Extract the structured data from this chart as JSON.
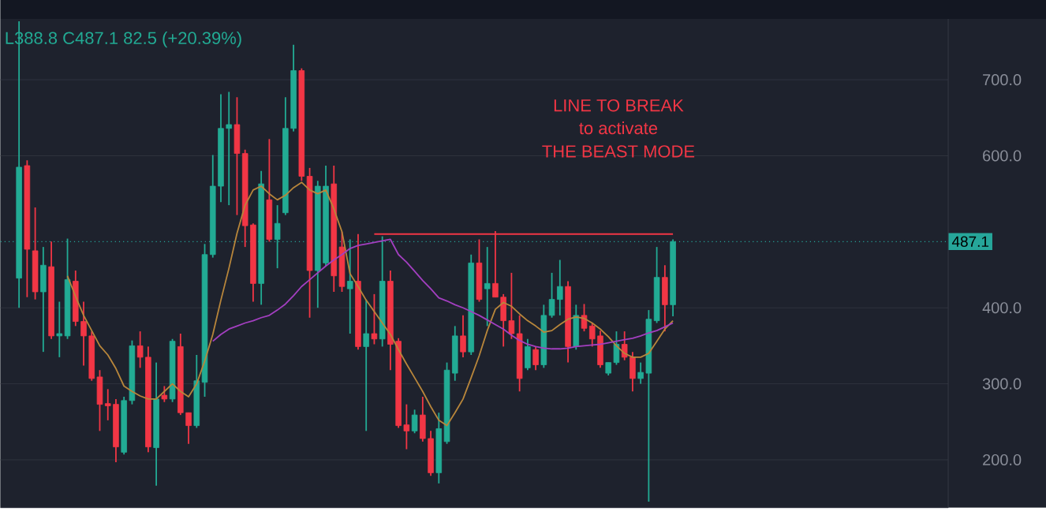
{
  "chart_data": {
    "type": "candlestick",
    "categories": [
      null,
      null,
      null,
      null,
      null,
      null,
      null,
      null,
      null,
      null,
      null,
      null,
      null,
      null,
      null,
      null,
      null,
      null,
      null,
      null,
      null,
      null,
      null,
      null,
      null,
      null,
      null,
      null,
      null,
      null,
      null,
      null,
      null,
      null,
      null,
      null,
      null,
      null,
      null,
      null,
      null,
      null,
      null,
      null,
      null,
      null,
      null,
      null,
      null,
      null,
      null,
      null,
      null,
      null,
      null,
      null,
      null,
      null,
      null,
      null,
      null,
      null,
      null,
      null,
      null,
      null,
      null,
      null,
      null,
      null,
      null,
      null,
      null,
      null,
      null,
      null,
      null,
      null,
      null,
      null,
      null,
      null
    ],
    "ohlc": [
      [
        439,
        777,
        400,
        585
      ],
      [
        587,
        594,
        414,
        477
      ],
      [
        475,
        532,
        411,
        421
      ],
      [
        421,
        480,
        342,
        456
      ],
      [
        454,
        487,
        359,
        363
      ],
      [
        363,
        408,
        335,
        366
      ],
      [
        363,
        491,
        359,
        437
      ],
      [
        435,
        449,
        376,
        382
      ],
      [
        382,
        408,
        324,
        363
      ],
      [
        363,
        369,
        304,
        307
      ],
      [
        309,
        318,
        238,
        273
      ],
      [
        274,
        293,
        252,
        271
      ],
      [
        273,
        280,
        197,
        217
      ],
      [
        210,
        283,
        207,
        278
      ],
      [
        278,
        357,
        273,
        350
      ],
      [
        350,
        369,
        321,
        335
      ],
      [
        335,
        349,
        210,
        217
      ],
      [
        216,
        328,
        166,
        280
      ],
      [
        285,
        297,
        276,
        280
      ],
      [
        280,
        359,
        276,
        356
      ],
      [
        349,
        366,
        259,
        262
      ],
      [
        262,
        262,
        221,
        245
      ],
      [
        245,
        338,
        242,
        304
      ],
      [
        302,
        484,
        283,
        470
      ],
      [
        470,
        601,
        466,
        560
      ],
      [
        560,
        681,
        539,
        636
      ],
      [
        636,
        684,
        535,
        641
      ],
      [
        641,
        677,
        522,
        603
      ],
      [
        603,
        608,
        480,
        508
      ],
      [
        509,
        511,
        408,
        432
      ],
      [
        432,
        580,
        404,
        563
      ],
      [
        542,
        622,
        487,
        490
      ],
      [
        490,
        535,
        452,
        511
      ],
      [
        525,
        677,
        522,
        636
      ],
      [
        636,
        746,
        632,
        712
      ],
      [
        712,
        715,
        567,
        573
      ],
      [
        573,
        584,
        387,
        449
      ],
      [
        449,
        567,
        400,
        560
      ],
      [
        459,
        587,
        455,
        560
      ],
      [
        563,
        587,
        421,
        442
      ],
      [
        480,
        500,
        421,
        428
      ],
      [
        425,
        490,
        366,
        435
      ],
      [
        435,
        497,
        345,
        349
      ],
      [
        349,
        411,
        238,
        366
      ],
      [
        366,
        418,
        352,
        359
      ],
      [
        359,
        494,
        349,
        435
      ],
      [
        435,
        449,
        318,
        352
      ],
      [
        356,
        360,
        242,
        245
      ],
      [
        246,
        273,
        214,
        238
      ],
      [
        238,
        266,
        235,
        259
      ],
      [
        259,
        283,
        224,
        228
      ],
      [
        228,
        238,
        179,
        183
      ],
      [
        183,
        262,
        169,
        241
      ],
      [
        224,
        328,
        221,
        318
      ],
      [
        314,
        376,
        304,
        363
      ],
      [
        363,
        390,
        335,
        342
      ],
      [
        342,
        470,
        338,
        459
      ],
      [
        459,
        490,
        408,
        411
      ],
      [
        425,
        480,
        376,
        432
      ],
      [
        432,
        501,
        414,
        414
      ],
      [
        414,
        418,
        349,
        383
      ],
      [
        383,
        446,
        359,
        366
      ],
      [
        366,
        390,
        290,
        307
      ],
      [
        321,
        359,
        318,
        349
      ],
      [
        345,
        349,
        318,
        325
      ],
      [
        325,
        404,
        321,
        390
      ],
      [
        390,
        446,
        387,
        411
      ],
      [
        411,
        463,
        390,
        428
      ],
      [
        428,
        435,
        328,
        349
      ],
      [
        349,
        404,
        345,
        390
      ],
      [
        390,
        405,
        369,
        373
      ],
      [
        376,
        380,
        349,
        359
      ],
      [
        363,
        370,
        321,
        325
      ],
      [
        314,
        328,
        311,
        328
      ],
      [
        328,
        369,
        325,
        352
      ],
      [
        352,
        369,
        331,
        335
      ],
      [
        335,
        342,
        290,
        307
      ],
      [
        307,
        328,
        300,
        315
      ],
      [
        314,
        397,
        145,
        385
      ],
      [
        383,
        480,
        380,
        440
      ],
      [
        440,
        456,
        369,
        404
      ],
      [
        404,
        490,
        388.8,
        487.1
      ]
    ],
    "series": [
      {
        "type": "line",
        "color": "#b8863b",
        "values": [
          null,
          null,
          null,
          null,
          null,
          null,
          442,
          415,
          390,
          370,
          350,
          338,
          320,
          297,
          290,
          284,
          280,
          280,
          290,
          300,
          290,
          283,
          300,
          330,
          365,
          410,
          452,
          498,
          535,
          555,
          560,
          550,
          542,
          548,
          558,
          565,
          555,
          550,
          555,
          530,
          500,
          445,
          428,
          410,
          395,
          380,
          365,
          345,
          326,
          308,
          290,
          270,
          252,
          245,
          262,
          280,
          308,
          337,
          370,
          398,
          407,
          402,
          392,
          383,
          376,
          368,
          370,
          378,
          385,
          388,
          386,
          380,
          372,
          362,
          350,
          340,
          335,
          335,
          340,
          356,
          372,
          383
        ]
      },
      {
        "type": "line",
        "color": "#a33fc0",
        "values": [
          null,
          null,
          null,
          null,
          null,
          null,
          null,
          null,
          null,
          null,
          null,
          null,
          null,
          null,
          null,
          null,
          null,
          null,
          null,
          null,
          null,
          null,
          null,
          null,
          356,
          365,
          372,
          376,
          380,
          383,
          387,
          390,
          397,
          405,
          416,
          428,
          437,
          446,
          455,
          463,
          470,
          478,
          482,
          484,
          486,
          488,
          490,
          470,
          460,
          448,
          436,
          425,
          413,
          409,
          404,
          400,
          395,
          390,
          384,
          378,
          372,
          364,
          357,
          352,
          349,
          347,
          346,
          346,
          347,
          349,
          350,
          351,
          352,
          354,
          356,
          358,
          360,
          363,
          367,
          370,
          375,
          380
        ]
      },
      {
        "type": "line",
        "color": "#f23645",
        "values": [
          null,
          null,
          null,
          null,
          null,
          null,
          null,
          null,
          null,
          null,
          null,
          null,
          null,
          null,
          null,
          null,
          null,
          null,
          null,
          null,
          null,
          null,
          null,
          null,
          null,
          null,
          null,
          null,
          null,
          null,
          null,
          null,
          null,
          null,
          null,
          null,
          null,
          null,
          null,
          null,
          null,
          null,
          null,
          null,
          497,
          497,
          497,
          497,
          497,
          497,
          497,
          497,
          497,
          497,
          497,
          497,
          497,
          497,
          497,
          497,
          497,
          497,
          497,
          497,
          497,
          497,
          497,
          497,
          497,
          497,
          497,
          497,
          497,
          497,
          497,
          497,
          497,
          497,
          497,
          497,
          497,
          497
        ]
      }
    ],
    "ref_lines": [
      {
        "axis": "y",
        "value": 487.1,
        "label": "487.1",
        "color": "#26a69a",
        "line_style": "dotted"
      }
    ],
    "annotations": [
      "L388.8 C487.1 82.5 (+20.39%)",
      "LINE TO BREAK",
      "to activate",
      "THE BEAST MODE"
    ],
    "ylim": [
      137,
      780
    ],
    "yticks": [
      {
        "value": 200,
        "label": "200.0"
      },
      {
        "value": 300,
        "label": "300.0"
      },
      {
        "value": 400,
        "label": "400.0"
      },
      {
        "value": 600,
        "label": "600.0"
      },
      {
        "value": 700,
        "label": "700.0"
      }
    ],
    "grid": "y",
    "tick_labels": "y"
  }
}
